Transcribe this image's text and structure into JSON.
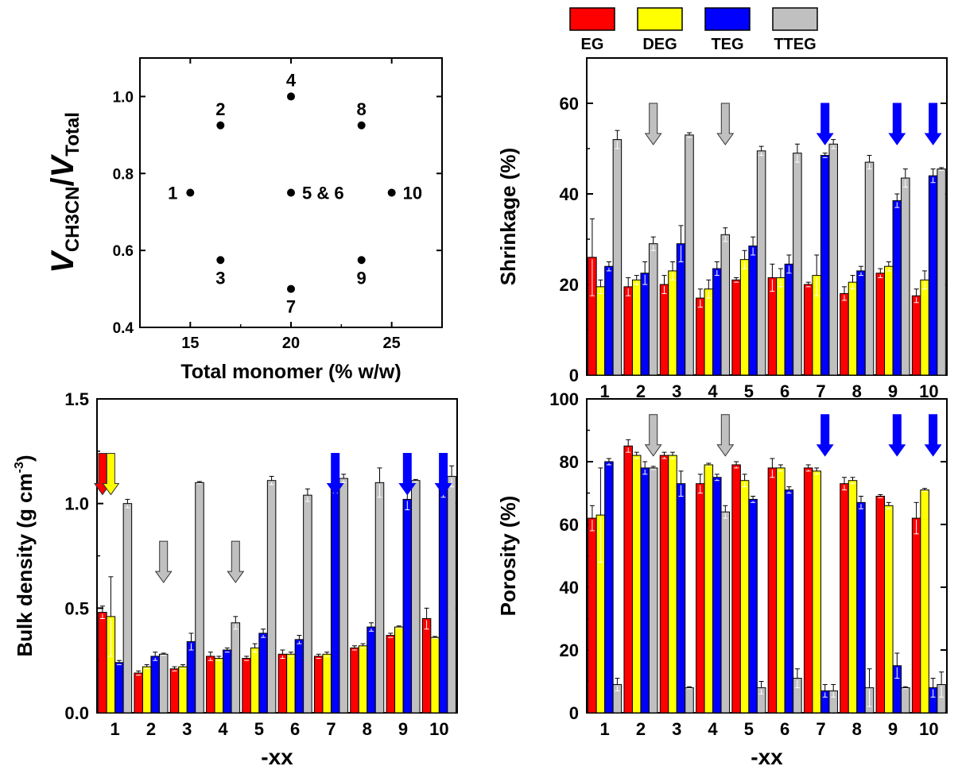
{
  "legend": [
    {
      "name": "EG",
      "color": "#ff0000"
    },
    {
      "name": "DEG",
      "color": "#ffff00"
    },
    {
      "name": "TEG",
      "color": "#0000ff"
    },
    {
      "name": "TTEG",
      "color": "#c0c0c0"
    }
  ],
  "chart_data": [
    {
      "type": "scatter",
      "xlabel": "Total monomer (% w/w)",
      "ylabel": "VCH3CN/VTotal",
      "xlim": [
        12.5,
        27.5
      ],
      "ylim": [
        0.4,
        1.1
      ],
      "xticks": [
        15,
        20,
        25
      ],
      "yticks": [
        0.4,
        0.6,
        0.8,
        1.0
      ],
      "points": [
        {
          "x": 15,
          "y": 0.75,
          "label": "1",
          "label_pos": "left"
        },
        {
          "x": 16.5,
          "y": 0.925,
          "label": "2",
          "label_pos": "above"
        },
        {
          "x": 16.5,
          "y": 0.575,
          "label": "3",
          "label_pos": "below"
        },
        {
          "x": 20,
          "y": 1.0,
          "label": "4",
          "label_pos": "above"
        },
        {
          "x": 20,
          "y": 0.75,
          "label": "5 & 6",
          "label_pos": "right"
        },
        {
          "x": 20,
          "y": 0.5,
          "label": "7",
          "label_pos": "below"
        },
        {
          "x": 23.5,
          "y": 0.925,
          "label": "8",
          "label_pos": "above"
        },
        {
          "x": 23.5,
          "y": 0.575,
          "label": "9",
          "label_pos": "below"
        },
        {
          "x": 25,
          "y": 0.75,
          "label": "10",
          "label_pos": "right"
        }
      ]
    },
    {
      "type": "bar",
      "ylabel": "Shrinkage (%)",
      "xlabel": "",
      "ylim": [
        0,
        70
      ],
      "yticks": [
        0,
        20,
        40,
        60
      ],
      "categories": [
        "1",
        "2",
        "3",
        "4",
        "5",
        "6",
        "7",
        "8",
        "9",
        "10"
      ],
      "series": [
        {
          "name": "EG",
          "values": [
            26,
            19.5,
            20,
            17,
            21,
            21.5,
            20,
            18,
            22.5,
            17.5
          ],
          "err": [
            8.5,
            2,
            2,
            2,
            0.5,
            3,
            0.5,
            1.5,
            1,
            1.5
          ]
        },
        {
          "name": "DEG",
          "values": [
            19.5,
            21,
            23,
            19,
            25.5,
            21.5,
            22,
            20.5,
            24,
            21
          ],
          "err": [
            1.5,
            1,
            2,
            2,
            2,
            2,
            4.5,
            1.5,
            1,
            2
          ]
        },
        {
          "name": "TEG",
          "values": [
            24,
            22.5,
            29,
            23.5,
            28.5,
            24.5,
            48.5,
            23,
            38.5,
            44
          ],
          "err": [
            1,
            2.5,
            4,
            1.5,
            2,
            2,
            0.5,
            1,
            1.5,
            1.5
          ]
        },
        {
          "name": "TTEG",
          "values": [
            52,
            29,
            53,
            31,
            49.5,
            49,
            51,
            47,
            43.5,
            45.5
          ],
          "err": [
            2,
            1.5,
            0.5,
            1.5,
            1,
            2,
            1,
            1.5,
            2,
            0.3
          ]
        }
      ],
      "arrows": [
        {
          "category": "2",
          "series": "TTEG",
          "y": 60
        },
        {
          "category": "4",
          "series": "TTEG",
          "y": 60
        },
        {
          "category": "7",
          "series": "TEG",
          "y": 60
        },
        {
          "category": "9",
          "series": "TEG",
          "y": 60
        },
        {
          "category": "10",
          "series": "TEG",
          "y": 60
        }
      ]
    },
    {
      "type": "bar",
      "ylabel": "Bulk density (g cm-3)",
      "xlabel": "-xx",
      "ylim": [
        0,
        1.5
      ],
      "yticks": [
        0.0,
        0.5,
        1.0,
        1.5
      ],
      "categories": [
        "1",
        "2",
        "3",
        "4",
        "5",
        "6",
        "7",
        "8",
        "9",
        "10"
      ],
      "series": [
        {
          "name": "EG",
          "values": [
            0.48,
            0.19,
            0.21,
            0.27,
            0.26,
            0.28,
            0.27,
            0.31,
            0.37,
            0.45
          ],
          "err": [
            0.03,
            0.01,
            0.01,
            0.02,
            0.01,
            0.02,
            0.01,
            0.01,
            0.01,
            0.05
          ]
        },
        {
          "name": "DEG",
          "values": [
            0.46,
            0.22,
            0.22,
            0.26,
            0.31,
            0.28,
            0.28,
            0.32,
            0.41,
            0.36
          ],
          "err": [
            0.19,
            0.01,
            0.01,
            0.01,
            0.02,
            0.01,
            0.01,
            0.01,
            0.005,
            0.005
          ]
        },
        {
          "name": "TEG",
          "values": [
            0.24,
            0.27,
            0.34,
            0.3,
            0.38,
            0.35,
            1.07,
            0.41,
            1.02,
            1.07
          ],
          "err": [
            0.01,
            0.02,
            0.04,
            0.01,
            0.02,
            0.02,
            0.02,
            0.02,
            0.05,
            0.04
          ]
        },
        {
          "name": "TTEG",
          "values": [
            1.0,
            0.28,
            1.1,
            0.43,
            1.11,
            1.04,
            1.12,
            1.1,
            1.11,
            1.13
          ],
          "err": [
            0.02,
            0.005,
            0.005,
            0.03,
            0.02,
            0.03,
            0.02,
            0.07,
            0.005,
            0.05
          ]
        }
      ],
      "arrows": [
        {
          "category": "1",
          "series": "EG",
          "y": 1.24
        },
        {
          "category": "1",
          "series": "DEG",
          "y": 1.24
        },
        {
          "category": "2",
          "series": "TTEG",
          "y": 0.82
        },
        {
          "category": "4",
          "series": "TTEG",
          "y": 0.82
        },
        {
          "category": "7",
          "series": "TEG",
          "y": 1.24
        },
        {
          "category": "9",
          "series": "TEG",
          "y": 1.24
        },
        {
          "category": "10",
          "series": "TEG",
          "y": 1.24
        }
      ]
    },
    {
      "type": "bar",
      "ylabel": "Porosity (%)",
      "xlabel": "-xx",
      "ylim": [
        0,
        100
      ],
      "yticks": [
        0,
        20,
        40,
        60,
        80,
        100
      ],
      "categories": [
        "1",
        "2",
        "3",
        "4",
        "5",
        "6",
        "7",
        "8",
        "9",
        "10"
      ],
      "series": [
        {
          "name": "EG",
          "values": [
            62,
            85,
            82,
            73,
            79,
            78,
            78,
            73,
            69,
            62
          ],
          "err": [
            4,
            2,
            1,
            3,
            1,
            3,
            1,
            2,
            0.5,
            5
          ]
        },
        {
          "name": "DEG",
          "values": [
            63,
            82,
            82,
            79,
            74,
            78,
            77,
            74,
            66,
            71
          ],
          "err": [
            15,
            1,
            1,
            0.5,
            2,
            1,
            1,
            1,
            1,
            0.5
          ]
        },
        {
          "name": "TEG",
          "values": [
            80,
            78,
            73,
            75,
            68,
            71,
            7,
            67,
            15,
            8
          ],
          "err": [
            1,
            2,
            4,
            1,
            1,
            1,
            2,
            2,
            4,
            3
          ]
        },
        {
          "name": "TTEG",
          "values": [
            9,
            78,
            8,
            64,
            8,
            11,
            7,
            8,
            8,
            9
          ],
          "err": [
            2,
            0.5,
            0.3,
            2,
            2,
            3,
            2,
            6,
            0.3,
            4
          ]
        }
      ],
      "arrows": [
        {
          "category": "2",
          "series": "TTEG",
          "y": 95
        },
        {
          "category": "4",
          "series": "TTEG",
          "y": 95
        },
        {
          "category": "7",
          "series": "TEG",
          "y": 95
        },
        {
          "category": "9",
          "series": "TEG",
          "y": 95
        },
        {
          "category": "10",
          "series": "TEG",
          "y": 95
        }
      ]
    }
  ]
}
